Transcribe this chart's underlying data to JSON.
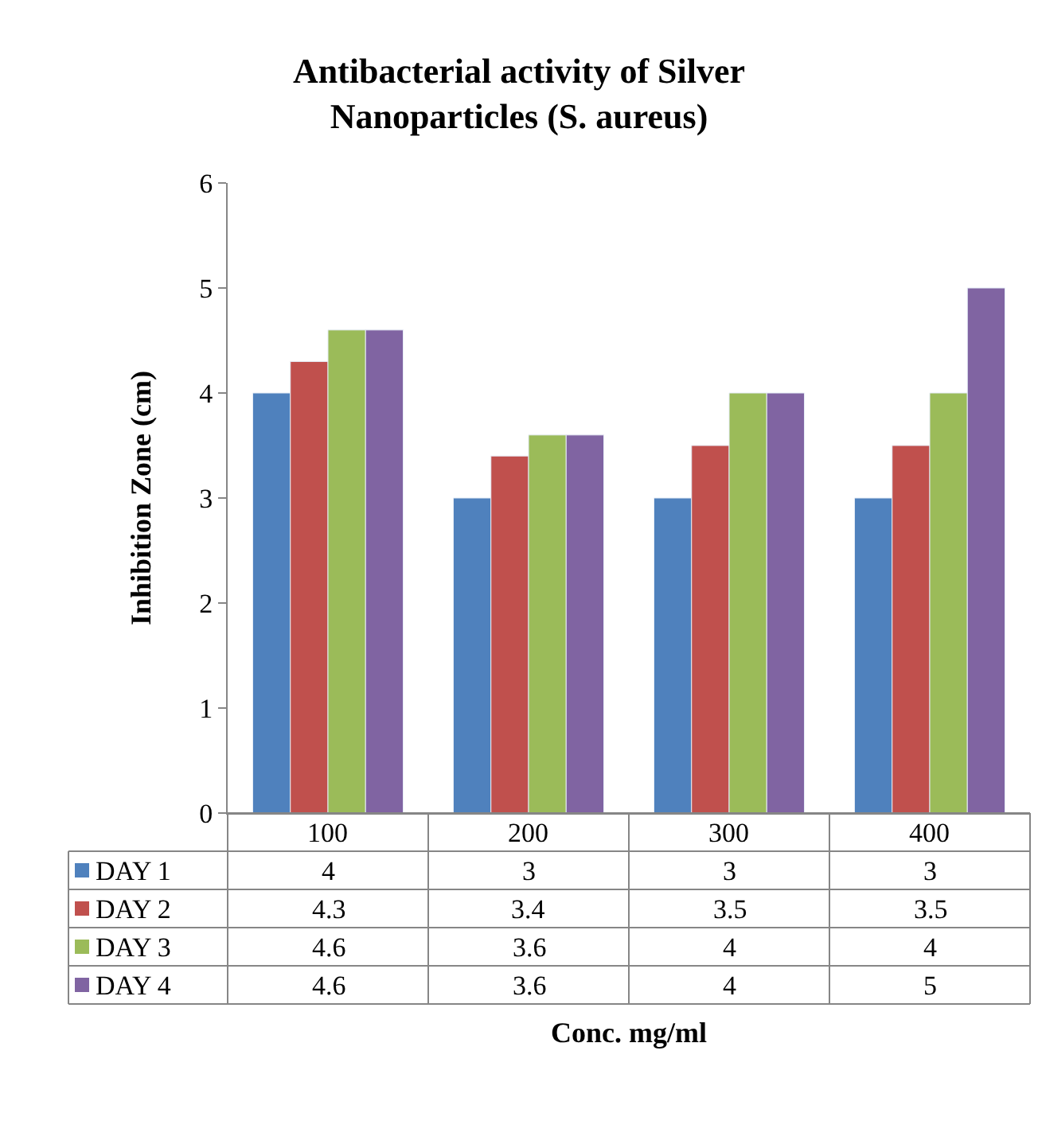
{
  "chart_data": {
    "type": "bar",
    "title": "Antibacterial activity of Silver Nanoparticles (S. aureus)",
    "annotations": [
      "Conc. mg/ml"
    ],
    "ylabel": "Inhibition Zone (cm)",
    "categories": [
      "100",
      "200",
      "300",
      "400"
    ],
    "series": [
      {
        "name": "DAY 1",
        "color": "#4f81bd",
        "values": [
          4,
          3,
          3,
          3
        ]
      },
      {
        "name": "DAY 2",
        "color": "#c0504d",
        "values": [
          4.3,
          3.4,
          3.5,
          3.5
        ]
      },
      {
        "name": "DAY 3",
        "color": "#9bbb59",
        "values": [
          4.6,
          3.6,
          4,
          4
        ]
      },
      {
        "name": "DAY 4",
        "color": "#8064a2",
        "values": [
          4.6,
          3.6,
          4,
          5
        ]
      }
    ],
    "ylim": [
      0,
      6
    ],
    "yticks": [
      0,
      1,
      2,
      3,
      4,
      5,
      6
    ],
    "grid": false,
    "legend": "bottom left",
    "data_labels": true
  }
}
